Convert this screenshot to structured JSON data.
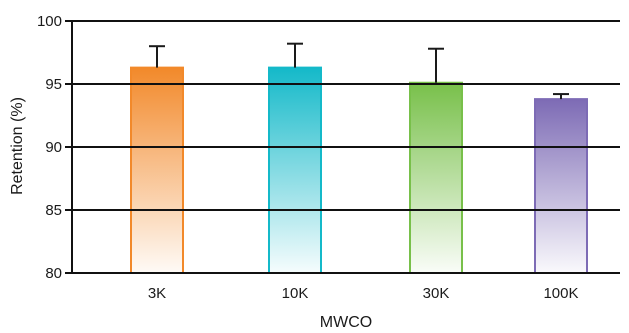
{
  "chart_data": {
    "type": "bar",
    "title": "",
    "xlabel": "MWCO",
    "ylabel": "Retention (%)",
    "ylim": [
      80,
      100
    ],
    "yticks": [
      "80",
      "85",
      "90",
      "95",
      "100"
    ],
    "grid": true,
    "legend": "none",
    "categories": [
      "3K",
      "10K",
      "30K",
      "100K"
    ],
    "values": [
      96.3,
      96.3,
      95.1,
      93.8
    ],
    "error_plus": [
      1.7,
      1.9,
      2.7,
      0.4
    ],
    "colors": [
      "#f2892a",
      "#14b9c9",
      "#78c04a",
      "#7d6bb5"
    ]
  }
}
